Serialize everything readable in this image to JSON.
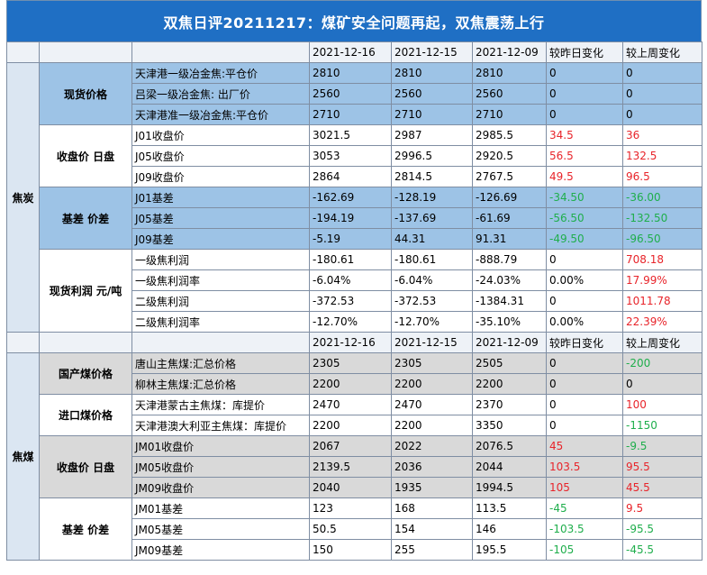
{
  "title": "双焦日评20211217：煤矿安全问题再起，双焦震荡上行",
  "sections": [
    {
      "category": "焦炭",
      "header": [
        "2021-12-16",
        "2021-12-15",
        "2021-12-09",
        "较昨日变化",
        "较上周变化"
      ],
      "groups": [
        {
          "name": "现货价格",
          "shade": "blue",
          "rows": [
            {
              "label": "天津港一级冶金焦:平仓价",
              "v": [
                "2810",
                "2810",
                "2810",
                "0",
                "0"
              ],
              "s": [
                "",
                ""
              ]
            },
            {
              "label": "吕梁一级冶金焦: 出厂价",
              "v": [
                "2560",
                "2560",
                "2560",
                "0",
                "0"
              ],
              "s": [
                "",
                ""
              ]
            },
            {
              "label": "天津港准一级冶金焦:平仓价",
              "v": [
                "2710",
                "2710",
                "2710",
                "0",
                "0"
              ],
              "s": [
                "",
                ""
              ]
            }
          ]
        },
        {
          "name": "收盘价 日盘",
          "shade": "white",
          "rows": [
            {
              "label": "J01收盘价",
              "v": [
                "3021.5",
                "2987",
                "2985.5",
                "34.5",
                "36"
              ],
              "s": [
                "pos",
                "pos"
              ]
            },
            {
              "label": "J05收盘价",
              "v": [
                "3053",
                "2996.5",
                "2920.5",
                "56.5",
                "132.5"
              ],
              "s": [
                "pos",
                "pos"
              ]
            },
            {
              "label": "J09收盘价",
              "v": [
                "2864",
                "2814.5",
                "2767.5",
                "49.5",
                "96.5"
              ],
              "s": [
                "pos",
                "pos"
              ]
            }
          ]
        },
        {
          "name": "基差 价差",
          "shade": "blue",
          "rows": [
            {
              "label": "J01基差",
              "v": [
                "-162.69",
                "-128.19",
                "-126.69",
                "-34.50",
                "-36.00"
              ],
              "s": [
                "neg",
                "neg"
              ]
            },
            {
              "label": "J05基差",
              "v": [
                "-194.19",
                "-137.69",
                "-61.69",
                "-56.50",
                "-132.50"
              ],
              "s": [
                "neg",
                "neg"
              ]
            },
            {
              "label": "J09基差",
              "v": [
                "-5.19",
                "44.31",
                "91.31",
                "-49.50",
                "-96.50"
              ],
              "s": [
                "neg",
                "neg"
              ]
            }
          ]
        },
        {
          "name": "现货利润 元/吨",
          "shade": "white",
          "rows": [
            {
              "label": "一级焦利润",
              "v": [
                "-180.61",
                "-180.61",
                "-888.79",
                "0",
                "708.18"
              ],
              "s": [
                "",
                "pos"
              ]
            },
            {
              "label": "一级焦利润率",
              "v": [
                "-6.04%",
                "-6.04%",
                "-24.03%",
                "0.00%",
                "17.99%"
              ],
              "s": [
                "",
                "pos"
              ]
            },
            {
              "label": "二级焦利润",
              "v": [
                "-372.53",
                "-372.53",
                "-1384.31",
                "0",
                "1011.78"
              ],
              "s": [
                "",
                "pos"
              ]
            },
            {
              "label": "二级焦利润率",
              "v": [
                "-12.70%",
                "-12.70%",
                "-35.10%",
                "0.00%",
                "22.39%"
              ],
              "s": [
                "",
                "pos"
              ]
            }
          ]
        }
      ]
    },
    {
      "category": "焦煤",
      "header": [
        "2021-12-16",
        "2021-12-15",
        "2021-12-09",
        "较昨日变化",
        "较上周变化"
      ],
      "groups": [
        {
          "name": "国产煤价格",
          "shade": "gray",
          "rows": [
            {
              "label": "唐山主焦煤:汇总价格",
              "v": [
                "2305",
                "2305",
                "2505",
                "0",
                "-200"
              ],
              "s": [
                "",
                "neg"
              ]
            },
            {
              "label": "柳林主焦煤:汇总价格",
              "v": [
                "2200",
                "2200",
                "2200",
                "0",
                "0"
              ],
              "s": [
                "",
                ""
              ]
            }
          ]
        },
        {
          "name": "进口煤价格",
          "shade": "white",
          "rows": [
            {
              "label": "天津港蒙古主焦煤：库提价",
              "v": [
                "2470",
                "2470",
                "2370",
                "0",
                "100"
              ],
              "s": [
                "",
                "pos"
              ]
            },
            {
              "label": "天津港澳大利亚主焦煤：库提价",
              "v": [
                "2200",
                "2200",
                "3350",
                "0",
                "-1150"
              ],
              "s": [
                "",
                "neg"
              ]
            }
          ]
        },
        {
          "name": "收盘价 日盘",
          "shade": "gray",
          "rows": [
            {
              "label": "JM01收盘价",
              "v": [
                "2067",
                "2022",
                "2076.5",
                "45",
                "-9.5"
              ],
              "s": [
                "pos",
                "neg"
              ]
            },
            {
              "label": "JM05收盘价",
              "v": [
                "2139.5",
                "2036",
                "2044",
                "103.5",
                "95.5"
              ],
              "s": [
                "pos",
                "pos"
              ]
            },
            {
              "label": "JM09收盘价",
              "v": [
                "2040",
                "1935",
                "1994.5",
                "105",
                "45.5"
              ],
              "s": [
                "pos",
                "pos"
              ]
            }
          ]
        },
        {
          "name": "基差 价差",
          "shade": "white",
          "rows": [
            {
              "label": "JM01基差",
              "v": [
                "123",
                "168",
                "113.5",
                "-45",
                "9.5"
              ],
              "s": [
                "neg",
                "pos"
              ]
            },
            {
              "label": "JM05基差",
              "v": [
                "50.5",
                "154",
                "146",
                "-103.5",
                "-95.5"
              ],
              "s": [
                "neg",
                "neg"
              ]
            },
            {
              "label": "JM09基差",
              "v": [
                "150",
                "255",
                "195.5",
                "-105",
                "-45.5"
              ],
              "s": [
                "neg",
                "neg"
              ]
            }
          ]
        }
      ]
    }
  ]
}
